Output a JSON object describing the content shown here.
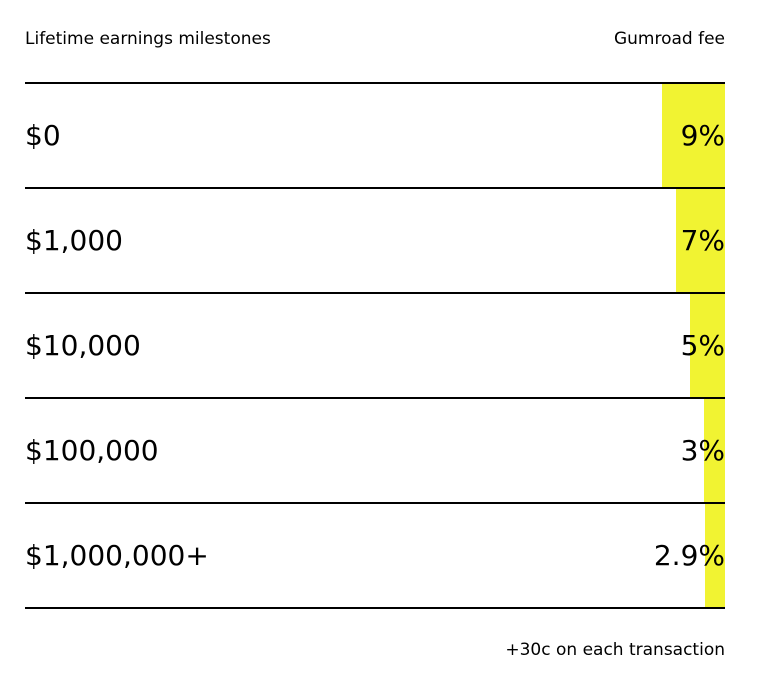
{
  "header": {
    "left_label": "Lifetime earnings milestones",
    "right_label": "Gumroad fee"
  },
  "colors": {
    "accent": "#f1f332",
    "rule": "#000000"
  },
  "rows": [
    {
      "milestone": "$0",
      "fee": "9%",
      "fee_value": 9
    },
    {
      "milestone": "$1,000",
      "fee": "7%",
      "fee_value": 7
    },
    {
      "milestone": "$10,000",
      "fee": "5%",
      "fee_value": 5
    },
    {
      "milestone": "$100,000",
      "fee": "3%",
      "fee_value": 3
    },
    {
      "milestone": "$1,000,000+",
      "fee": "2.9%",
      "fee_value": 2.9
    }
  ],
  "footnote": "+30c on each transaction"
}
